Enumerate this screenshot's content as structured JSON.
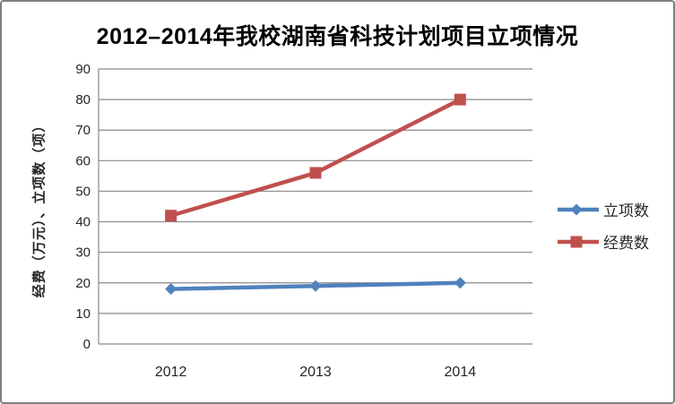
{
  "chart_data": {
    "type": "line",
    "title": "2012–2014年我校湖南省科技计划项目立项情况",
    "categories": [
      "2012",
      "2013",
      "2014"
    ],
    "series": [
      {
        "name": "立项数",
        "values": [
          18,
          19,
          20
        ],
        "color": "#4F81BD",
        "marker": "diamond"
      },
      {
        "name": "经费数",
        "values": [
          42,
          56,
          80
        ],
        "color": "#C0504D",
        "marker": "square"
      }
    ],
    "xlabel": "",
    "ylabel": "经费（万元）、立项数（项）",
    "ylim": [
      0,
      90
    ],
    "yticks": [
      0,
      10,
      20,
      30,
      40,
      50,
      60,
      70,
      80,
      90
    ],
    "grid": true,
    "legend_position": "right",
    "colors": {
      "grid": "#8A8A8A",
      "axis": "#8A8A8A",
      "tick_text": "#262626",
      "title_text": "#000000",
      "frame_border": "#7F7F7F",
      "background": "#FFFFFF"
    }
  }
}
